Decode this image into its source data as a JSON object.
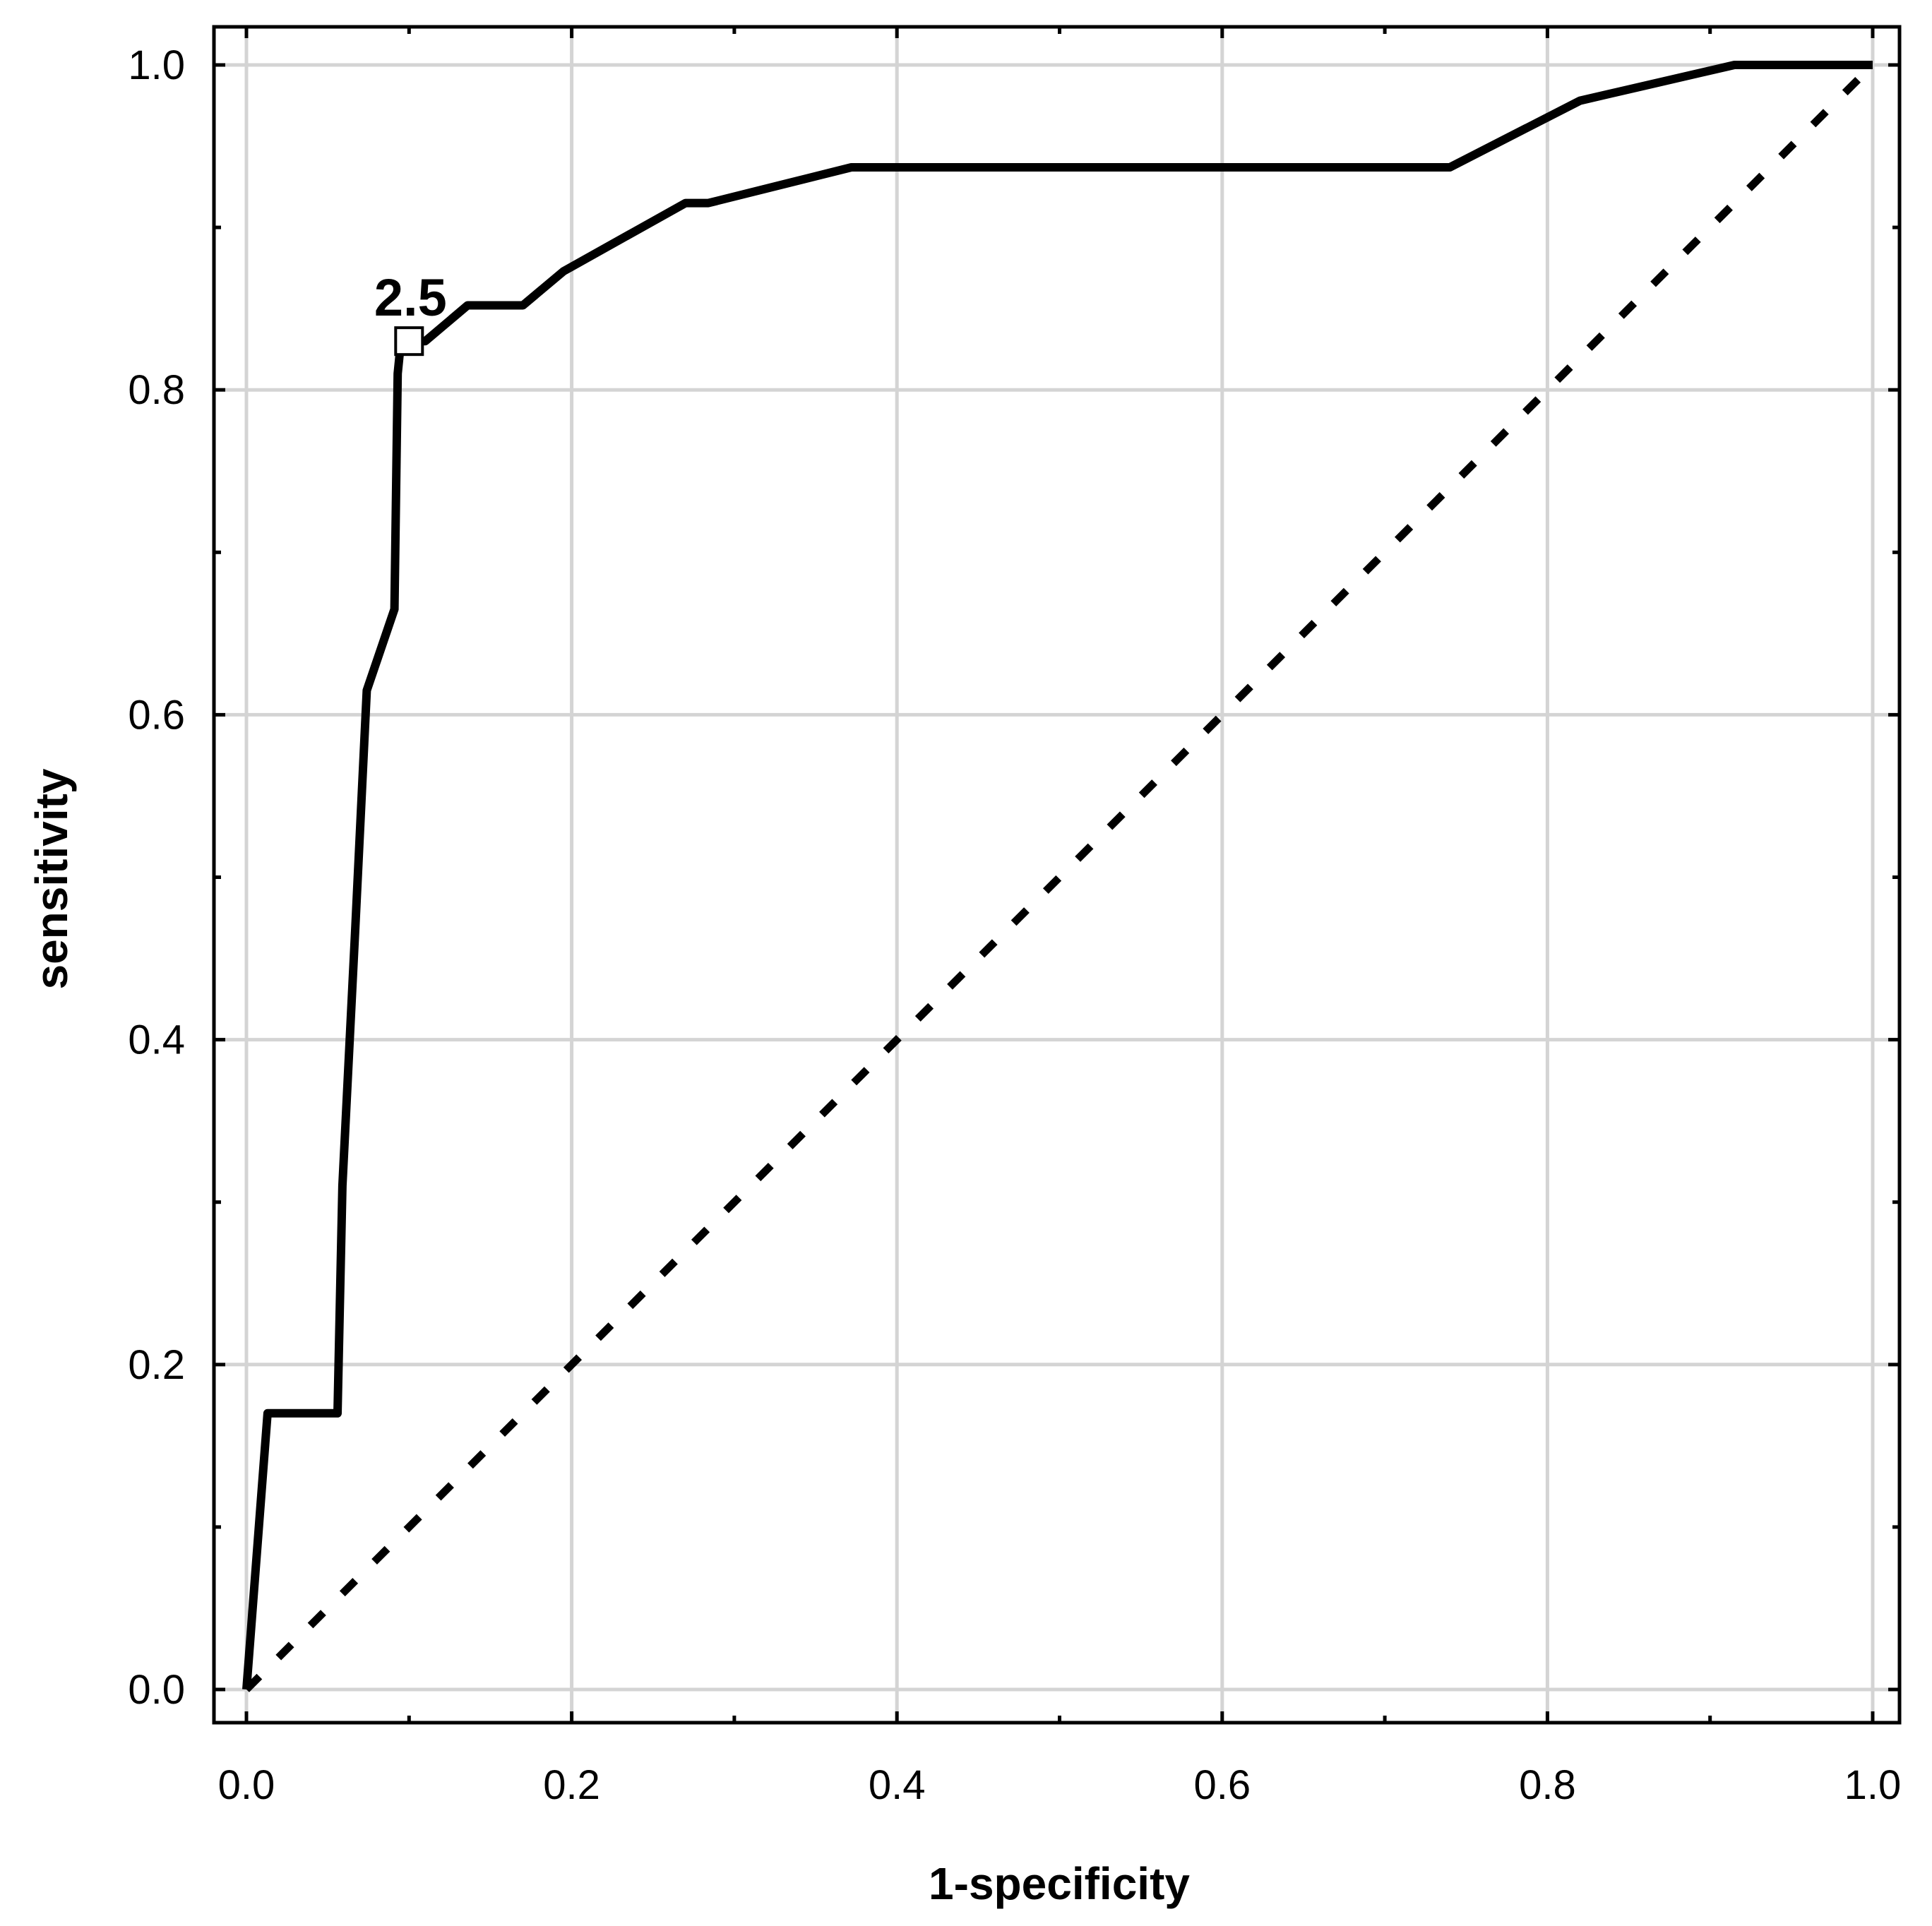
{
  "chart_data": {
    "type": "line",
    "title": "",
    "xlabel": "1-specificity",
    "ylabel": "sensitivity",
    "xlim": [
      0.0,
      1.0
    ],
    "ylim": [
      0.0,
      1.0
    ],
    "grid": true,
    "legend": "none",
    "x_ticks": [
      "0.0",
      "0.2",
      "0.4",
      "0.6",
      "0.8",
      "1.0"
    ],
    "y_ticks": [
      "0.0",
      "0.2",
      "0.4",
      "0.6",
      "0.8",
      "1.0"
    ],
    "series": [
      {
        "style": "solid",
        "color": "#000000",
        "x": [
          0.0,
          0.013,
          0.056,
          0.059,
          0.067,
          0.074,
          0.091,
          0.093,
          0.095,
          0.098,
          0.11,
          0.136,
          0.17,
          0.195,
          0.27,
          0.284,
          0.372,
          0.52,
          0.74,
          0.82,
          0.915,
          1.0
        ],
        "y": [
          0.0,
          0.17,
          0.17,
          0.31,
          0.47,
          0.615,
          0.665,
          0.81,
          0.83,
          0.83,
          0.83,
          0.852,
          0.852,
          0.873,
          0.915,
          0.915,
          0.937,
          0.937,
          0.937,
          0.978,
          1.0,
          1.0
        ]
      },
      {
        "style": "dashed",
        "color": "#000000",
        "x": [
          0.0,
          1.0
        ],
        "y": [
          0.0,
          1.0
        ]
      }
    ],
    "annotations": [
      {
        "text": "2.5",
        "x": 0.1,
        "y": 0.83,
        "marker": "open-square"
      }
    ]
  }
}
